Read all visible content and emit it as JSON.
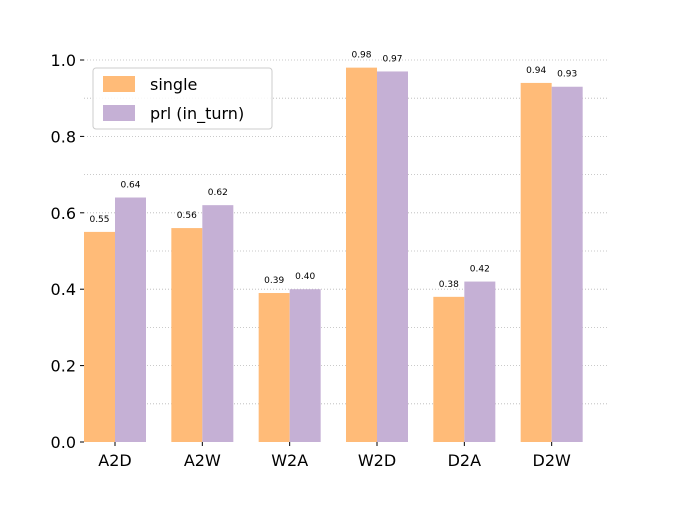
{
  "chart_data": {
    "type": "bar",
    "title": "",
    "xlabel": "",
    "ylabel": "",
    "categories": [
      "A2D",
      "A2W",
      "W2A",
      "W2D",
      "D2A",
      "D2W"
    ],
    "series": [
      {
        "name": "single",
        "values": [
          0.55,
          0.56,
          0.39,
          0.98,
          0.38,
          0.94
        ],
        "labels": [
          "0.55",
          "0.56",
          "0.39",
          "0.98",
          "0.38",
          "0.94"
        ],
        "color": "#FFBB78"
      },
      {
        "name": "prl (in_turn)",
        "values": [
          0.64,
          0.62,
          0.4,
          0.97,
          0.42,
          0.93
        ],
        "labels": [
          "0.64",
          "0.62",
          "0.40",
          "0.97",
          "0.42",
          "0.93"
        ],
        "color": "#C5B0D5"
      }
    ],
    "ylim": [
      0.0,
      1.0
    ],
    "yticks": [
      "0.0",
      "0.2",
      "0.4",
      "0.6",
      "0.8",
      "1.0"
    ],
    "grid": "horizontal dotted",
    "legend": "top-left"
  }
}
